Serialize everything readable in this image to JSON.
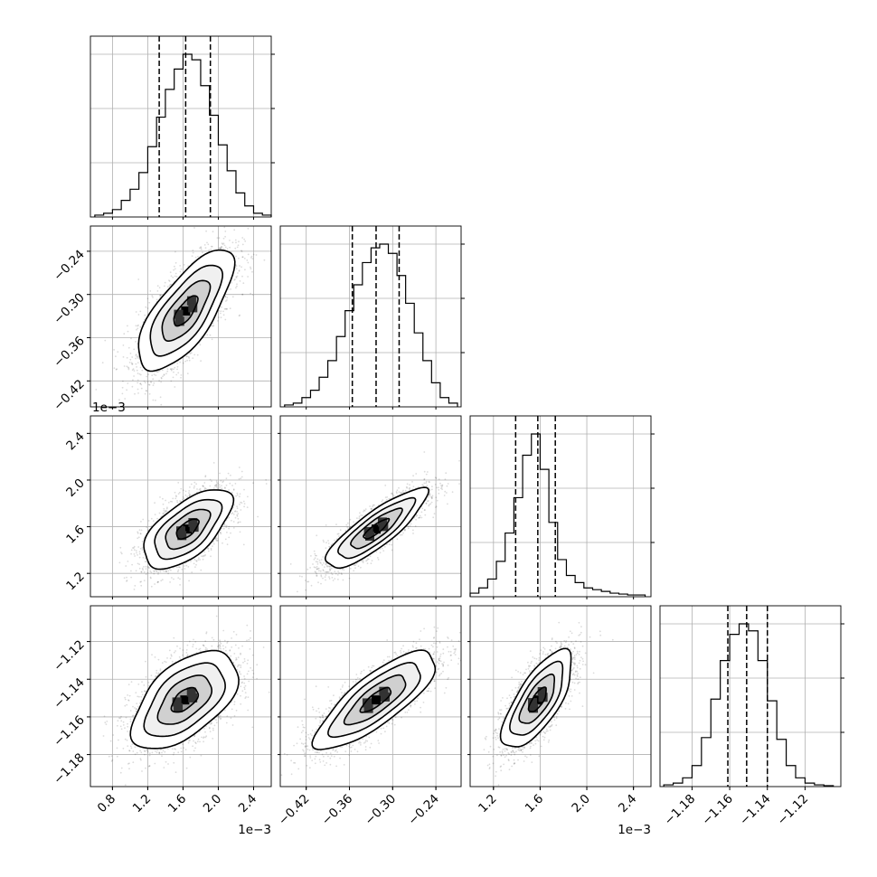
{
  "chart_data": {
    "type": "corner",
    "title": "",
    "grid": true,
    "parameters": [
      {
        "id": "p1",
        "scale": 0.001,
        "lim": [
          0.55,
          2.6
        ],
        "ticks": [
          0.8,
          1.2,
          1.6,
          2.0,
          2.4
        ],
        "tick_labels": [
          "0.8",
          "1.2",
          "1.6",
          "2.0",
          "2.4"
        ],
        "offset_text": "1e−3",
        "label": ""
      },
      {
        "id": "p2",
        "scale": 1,
        "lim": [
          -0.456,
          -0.205
        ],
        "ticks": [
          -0.42,
          -0.36,
          -0.3,
          -0.24
        ],
        "tick_labels": [
          "−0.42",
          "−0.36",
          "−0.30",
          "−0.24"
        ],
        "offset_text": "",
        "label": ""
      },
      {
        "id": "p3",
        "scale": 0.001,
        "lim": [
          1.0,
          2.55
        ],
        "ticks": [
          1.2,
          1.6,
          2.0,
          2.4
        ],
        "tick_labels": [
          "1.2",
          "1.6",
          "2.0",
          "2.4"
        ],
        "offset_text": "1e−3",
        "label": ""
      },
      {
        "id": "p4",
        "scale": 1,
        "lim": [
          -1.197,
          -1.101
        ],
        "ticks": [
          -1.18,
          -1.16,
          -1.14,
          -1.12
        ],
        "tick_labels": [
          "−1.18",
          "−1.16",
          "−1.14",
          "−1.12"
        ],
        "offset_text": "",
        "label": ""
      }
    ],
    "histograms": [
      {
        "param": "p1",
        "bins": [
          0.6,
          0.7,
          0.8,
          0.9,
          1.0,
          1.1,
          1.2,
          1.3,
          1.4,
          1.5,
          1.6,
          1.7,
          1.8,
          1.9,
          2.0,
          2.1,
          2.2,
          2.3,
          2.4,
          2.5,
          2.6
        ],
        "counts": [
          0.01,
          0.02,
          0.04,
          0.09,
          0.15,
          0.24,
          0.38,
          0.54,
          0.69,
          0.8,
          0.88,
          0.85,
          0.71,
          0.55,
          0.39,
          0.25,
          0.13,
          0.06,
          0.02,
          0.01
        ],
        "quantiles": [
          1.33,
          1.63,
          1.91
        ]
      },
      {
        "param": "p2",
        "bins": [
          -0.45,
          -0.438,
          -0.426,
          -0.414,
          -0.402,
          -0.39,
          -0.378,
          -0.366,
          -0.354,
          -0.342,
          -0.33,
          -0.318,
          -0.306,
          -0.294,
          -0.282,
          -0.27,
          -0.258,
          -0.246,
          -0.234,
          -0.222,
          -0.21
        ],
        "counts": [
          0.01,
          0.02,
          0.05,
          0.09,
          0.16,
          0.25,
          0.38,
          0.52,
          0.66,
          0.78,
          0.86,
          0.88,
          0.83,
          0.71,
          0.56,
          0.4,
          0.25,
          0.13,
          0.05,
          0.02
        ],
        "quantiles": [
          -0.356,
          -0.323,
          -0.291
        ]
      },
      {
        "param": "p3",
        "bins": [
          1.0,
          1.075,
          1.15,
          1.225,
          1.3,
          1.375,
          1.45,
          1.525,
          1.6,
          1.675,
          1.75,
          1.825,
          1.9,
          1.975,
          2.05,
          2.125,
          2.2,
          2.275,
          2.35,
          2.425,
          2.5
        ],
        "counts": [
          0.02,
          0.05,
          0.1,
          0.2,
          0.36,
          0.56,
          0.8,
          0.92,
          0.72,
          0.42,
          0.21,
          0.12,
          0.08,
          0.05,
          0.04,
          0.03,
          0.02,
          0.015,
          0.01,
          0.01
        ],
        "quantiles": [
          1.39,
          1.58,
          1.73
        ]
      },
      {
        "param": "p4",
        "bins": [
          -1.195,
          -1.19,
          -1.185,
          -1.18,
          -1.175,
          -1.17,
          -1.165,
          -1.16,
          -1.155,
          -1.15,
          -1.145,
          -1.14,
          -1.135,
          -1.13,
          -1.125,
          -1.12,
          -1.115,
          -1.11,
          -1.105
        ],
        "counts": [
          0.01,
          0.02,
          0.05,
          0.12,
          0.28,
          0.5,
          0.72,
          0.87,
          0.93,
          0.89,
          0.72,
          0.49,
          0.27,
          0.12,
          0.05,
          0.02,
          0.01,
          0.005
        ],
        "quantiles": [
          -1.161,
          -1.151,
          -1.14
        ]
      }
    ],
    "pairs": [
      {
        "x": "p1",
        "y": "p2",
        "mean": [
          1.63,
          -0.323
        ],
        "sd": [
          0.27,
          0.042
        ],
        "rho": 0.72
      },
      {
        "x": "p1",
        "y": "p3",
        "mean": [
          1.65,
          1.58
        ],
        "sd": [
          0.25,
          0.17
        ],
        "rho": 0.62
      },
      {
        "x": "p2",
        "y": "p3",
        "mean": [
          -0.323,
          1.58
        ],
        "sd": [
          0.035,
          0.17
        ],
        "rho": 0.85
      },
      {
        "x": "p1",
        "y": "p4",
        "mean": [
          1.62,
          -1.151
        ],
        "sd": [
          0.3,
          0.013
        ],
        "rho": 0.55
      },
      {
        "x": "p2",
        "y": "p4",
        "mean": [
          -0.323,
          -1.151
        ],
        "sd": [
          0.042,
          0.013
        ],
        "rho": 0.8
      },
      {
        "x": "p3",
        "y": "p4",
        "mean": [
          1.58,
          -1.151
        ],
        "sd": [
          0.15,
          0.013
        ],
        "rho": 0.72
      }
    ],
    "contour_levels_sigma": [
      0.5,
      1.0,
      1.5,
      2.0
    ]
  }
}
